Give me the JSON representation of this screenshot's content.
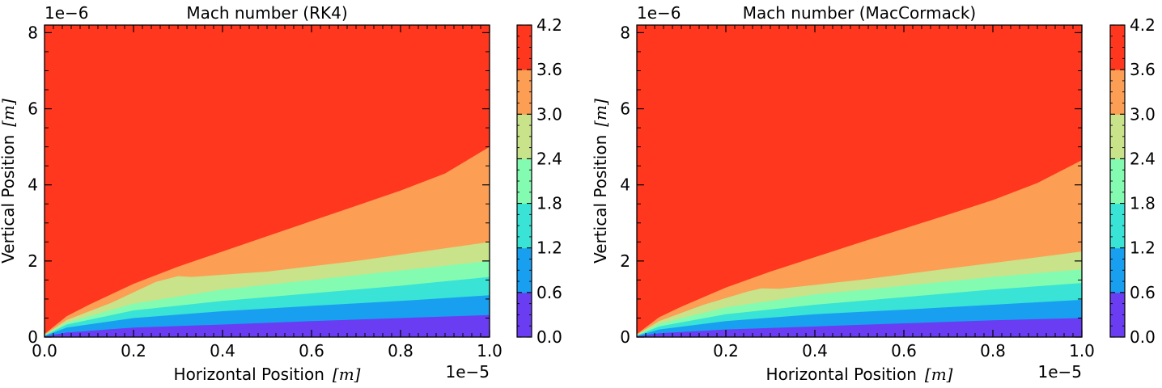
{
  "chart_data": [
    {
      "type": "contourf",
      "title": "Mach number (RK4)",
      "xlabel": "Horizontal Position",
      "xunit": "[m]",
      "ylabel": "Vertical Position",
      "yunit": "[m]",
      "xlim": [
        0.0,
        1.0
      ],
      "ylim": [
        0.0,
        8.2
      ],
      "x_offset_text": "1e−5",
      "y_offset_text": "1e−6",
      "xticks": [
        {
          "value": 0.0,
          "label": "0.0"
        },
        {
          "value": 0.2,
          "label": "0.2"
        },
        {
          "value": 0.4,
          "label": "0.4"
        },
        {
          "value": 0.6,
          "label": "0.6"
        },
        {
          "value": 0.8,
          "label": "0.8"
        },
        {
          "value": 1.0,
          "label": "1.0"
        }
      ],
      "yticks": [
        {
          "value": 0,
          "label": "0"
        },
        {
          "value": 2,
          "label": "2"
        },
        {
          "value": 4,
          "label": "4"
        },
        {
          "value": 6,
          "label": "6"
        },
        {
          "value": 8,
          "label": "8"
        }
      ],
      "levels": [
        0.0,
        0.6,
        1.2,
        1.8,
        2.4,
        3.0,
        3.6,
        4.2
      ],
      "level_colors": [
        "#6a3df2",
        "#199ff0",
        "#39e3d5",
        "#83fcb1",
        "#c8e389",
        "#fd9e55",
        "#fe371e"
      ],
      "boundaries": [
        {
          "upper_level": 0.6,
          "points": [
            [
              0,
              0.02
            ],
            [
              0.05,
              0.12
            ],
            [
              0.2,
              0.25
            ],
            [
              0.4,
              0.33
            ],
            [
              0.6,
              0.42
            ],
            [
              0.8,
              0.5
            ],
            [
              1.0,
              0.58
            ]
          ]
        },
        {
          "upper_level": 1.2,
          "points": [
            [
              0,
              0.03
            ],
            [
              0.05,
              0.25
            ],
            [
              0.2,
              0.5
            ],
            [
              0.4,
              0.68
            ],
            [
              0.6,
              0.82
            ],
            [
              0.8,
              0.95
            ],
            [
              1.0,
              1.1
            ]
          ]
        },
        {
          "upper_level": 1.8,
          "points": [
            [
              0,
              0.04
            ],
            [
              0.05,
              0.33
            ],
            [
              0.2,
              0.7
            ],
            [
              0.4,
              0.95
            ],
            [
              0.6,
              1.15
            ],
            [
              0.8,
              1.35
            ],
            [
              1.0,
              1.58
            ]
          ]
        },
        {
          "upper_level": 2.4,
          "points": [
            [
              0,
              0.05
            ],
            [
              0.05,
              0.38
            ],
            [
              0.2,
              0.88
            ],
            [
              0.4,
              1.25
            ],
            [
              0.6,
              1.5
            ],
            [
              0.8,
              1.75
            ],
            [
              1.0,
              2.0
            ]
          ]
        },
        {
          "upper_level": 3.0,
          "points": [
            [
              0,
              0.06
            ],
            [
              0.05,
              0.45
            ],
            [
              0.15,
              0.9
            ],
            [
              0.25,
              1.45
            ],
            [
              0.3,
              1.6
            ],
            [
              0.33,
              1.58
            ],
            [
              0.5,
              1.72
            ],
            [
              0.7,
              2.0
            ],
            [
              0.85,
              2.25
            ],
            [
              1.0,
              2.5
            ]
          ]
        },
        {
          "upper_level": 3.6,
          "points": [
            [
              0,
              0.08
            ],
            [
              0.05,
              0.55
            ],
            [
              0.1,
              0.85
            ],
            [
              0.2,
              1.4
            ],
            [
              0.3,
              1.85
            ],
            [
              0.4,
              2.25
            ],
            [
              0.5,
              2.65
            ],
            [
              0.6,
              3.05
            ],
            [
              0.7,
              3.45
            ],
            [
              0.8,
              3.85
            ],
            [
              0.9,
              4.3
            ],
            [
              1.0,
              5.0
            ]
          ]
        }
      ]
    },
    {
      "type": "contourf",
      "title": "Mach number (MacCormack)",
      "xlabel": "Horizontal Position",
      "xunit": "[m]",
      "ylabel": "Vertical Position",
      "yunit": "[m]",
      "xlim": [
        0.0,
        1.0
      ],
      "ylim": [
        0.0,
        8.2
      ],
      "x_offset_text": "1e−5",
      "y_offset_text": "1e−6",
      "xticks": [
        {
          "value": 0.2,
          "label": "0.2"
        },
        {
          "value": 0.4,
          "label": "0.4"
        },
        {
          "value": 0.6,
          "label": "0.6"
        },
        {
          "value": 0.8,
          "label": "0.8"
        },
        {
          "value": 1.0,
          "label": "1.0"
        }
      ],
      "yticks": [
        {
          "value": 0,
          "label": "0"
        },
        {
          "value": 2,
          "label": "2"
        },
        {
          "value": 4,
          "label": "4"
        },
        {
          "value": 6,
          "label": "6"
        },
        {
          "value": 8,
          "label": "8"
        }
      ],
      "levels": [
        0.0,
        0.6,
        1.2,
        1.8,
        2.4,
        3.0,
        3.6,
        4.2
      ],
      "level_colors": [
        "#6a3df2",
        "#199ff0",
        "#39e3d5",
        "#83fcb1",
        "#c8e389",
        "#fd9e55",
        "#fe371e"
      ],
      "boundaries": [
        {
          "upper_level": 0.6,
          "points": [
            [
              0,
              0.02
            ],
            [
              0.05,
              0.1
            ],
            [
              0.2,
              0.2
            ],
            [
              0.4,
              0.28
            ],
            [
              0.6,
              0.36
            ],
            [
              0.8,
              0.44
            ],
            [
              1.0,
              0.5
            ]
          ]
        },
        {
          "upper_level": 1.2,
          "points": [
            [
              0,
              0.03
            ],
            [
              0.05,
              0.2
            ],
            [
              0.2,
              0.42
            ],
            [
              0.4,
              0.6
            ],
            [
              0.6,
              0.72
            ],
            [
              0.8,
              0.85
            ],
            [
              1.0,
              0.98
            ]
          ]
        },
        {
          "upper_level": 1.8,
          "points": [
            [
              0,
              0.04
            ],
            [
              0.05,
              0.28
            ],
            [
              0.2,
              0.6
            ],
            [
              0.4,
              0.85
            ],
            [
              0.6,
              1.05
            ],
            [
              0.8,
              1.25
            ],
            [
              1.0,
              1.42
            ]
          ]
        },
        {
          "upper_level": 2.4,
          "points": [
            [
              0,
              0.05
            ],
            [
              0.05,
              0.35
            ],
            [
              0.2,
              0.78
            ],
            [
              0.4,
              1.12
            ],
            [
              0.6,
              1.35
            ],
            [
              0.8,
              1.58
            ],
            [
              1.0,
              1.78
            ]
          ]
        },
        {
          "upper_level": 3.0,
          "points": [
            [
              0,
              0.06
            ],
            [
              0.05,
              0.42
            ],
            [
              0.15,
              0.85
            ],
            [
              0.25,
              1.2
            ],
            [
              0.28,
              1.28
            ],
            [
              0.32,
              1.27
            ],
            [
              0.5,
              1.5
            ],
            [
              0.7,
              1.8
            ],
            [
              0.85,
              2.02
            ],
            [
              1.0,
              2.25
            ]
          ]
        },
        {
          "upper_level": 3.6,
          "points": [
            [
              0,
              0.08
            ],
            [
              0.05,
              0.52
            ],
            [
              0.1,
              0.8
            ],
            [
              0.2,
              1.3
            ],
            [
              0.3,
              1.72
            ],
            [
              0.4,
              2.1
            ],
            [
              0.5,
              2.48
            ],
            [
              0.6,
              2.85
            ],
            [
              0.7,
              3.22
            ],
            [
              0.8,
              3.6
            ],
            [
              0.9,
              4.05
            ],
            [
              1.0,
              4.65
            ]
          ]
        }
      ]
    }
  ]
}
